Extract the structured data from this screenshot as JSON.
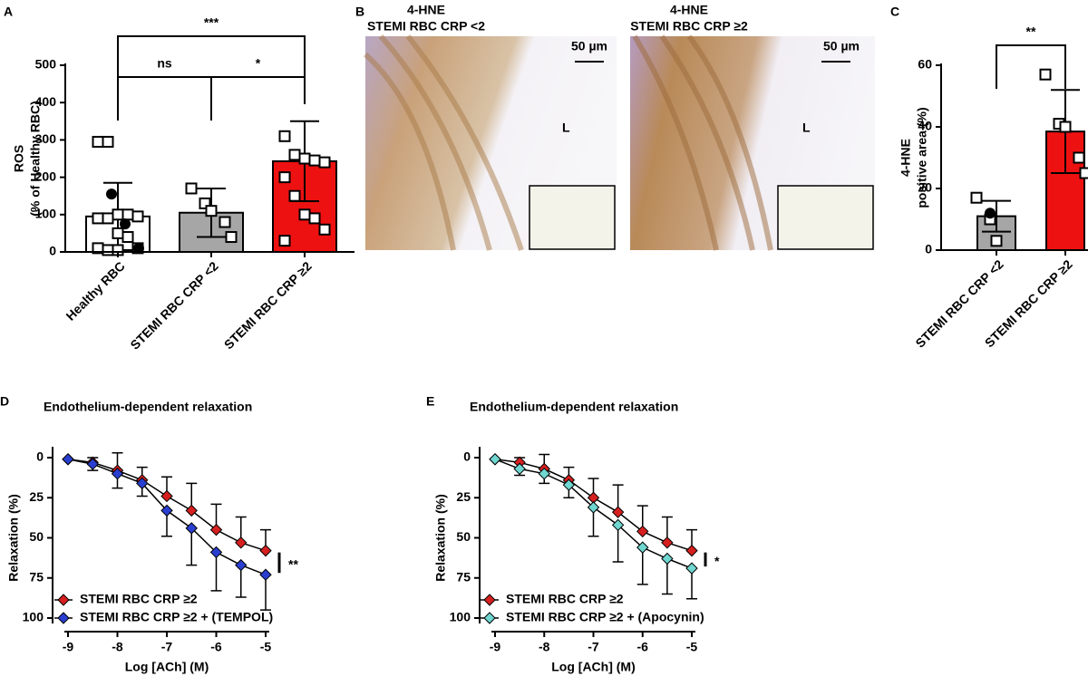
{
  "chart_data": [
    {
      "type": "bar",
      "panel_label": "A",
      "categories": [
        "Healthy RBC",
        "STEMI RBC CRP <2",
        "STEMI RBC CRP ≥2"
      ],
      "values": [
        95,
        105,
        243
      ],
      "errors": [
        90,
        65,
        107
      ],
      "colors": [
        "#ffffff",
        "#a6a6a6",
        "#ee1111"
      ],
      "points": [
        [
          295,
          295,
          100,
          100,
          95,
          90,
          90,
          50,
          40,
          10,
          10,
          5,
          5
        ],
        [
          170,
          130,
          110,
          80,
          40
        ],
        [
          310,
          260,
          250,
          245,
          240,
          200,
          150,
          100,
          90,
          60,
          30
        ]
      ],
      "filled_points": [
        [
          155,
          75,
          10
        ],
        [],
        []
      ],
      "ylabel": [
        "ROS",
        "(% of Healthy RBC)"
      ],
      "ylim": [
        0,
        500
      ],
      "yticks": [
        0,
        100,
        200,
        300,
        400,
        500
      ],
      "annotations": [
        "***",
        "ns",
        "*"
      ]
    },
    {
      "type": "bar",
      "panel_label": "C",
      "categories": [
        "STEMI RBC CRP <2",
        "STEMI RBC CRP ≥2"
      ],
      "values": [
        11,
        38.5
      ],
      "errors": [
        5,
        13.5
      ],
      "colors": [
        "#a6a6a6",
        "#ee1111"
      ],
      "points": [
        [
          17,
          10,
          3
        ],
        [
          57,
          41,
          40,
          30,
          25
        ]
      ],
      "filled_points": [
        [
          12
        ],
        []
      ],
      "ylabel": [
        "4-HNE",
        "positive area (%)"
      ],
      "ylim": [
        0,
        60
      ],
      "yticks": [
        0,
        20,
        40,
        60
      ],
      "annotations": [
        "**"
      ]
    },
    {
      "type": "line",
      "panel_label": "D",
      "title": "Endothelium-dependent relaxation",
      "xlabel": "Log [ACh] (M)",
      "ylabel": "Relaxation (%)",
      "x": [
        -9,
        -8.5,
        -8,
        -7.5,
        -7,
        -6.5,
        -6,
        -5.5,
        -5
      ],
      "xlim": [
        -9,
        -5
      ],
      "xticks": [
        -9,
        -8,
        -7,
        -6,
        -5
      ],
      "ylim": [
        0,
        100
      ],
      "yticks": [
        0,
        25,
        50,
        75,
        100
      ],
      "y_inverted": true,
      "series": [
        {
          "name": "STEMI RBC CRP ≥2",
          "color": "#d62020",
          "values": [
            1,
            3,
            8,
            14,
            24,
            33,
            45,
            53,
            58
          ],
          "errors": [
            0,
            3,
            11,
            8,
            12,
            17,
            16,
            16,
            13
          ]
        },
        {
          "name": "STEMI RBC CRP ≥2 + (TEMPOL)",
          "color": "#2a3fd0",
          "values": [
            1,
            4,
            10,
            16,
            33,
            44,
            59,
            67,
            73
          ],
          "errors": [
            0,
            4,
            9,
            8,
            16,
            23,
            24,
            20,
            22
          ]
        }
      ],
      "annotations": [
        "**"
      ]
    },
    {
      "type": "line",
      "panel_label": "E",
      "title": "Endothelium-dependent relaxation",
      "xlabel": "Log [ACh] (M)",
      "ylabel": "Relaxation (%)",
      "x": [
        -9,
        -8.5,
        -8,
        -7.5,
        -7,
        -6.5,
        -6,
        -5.5,
        -5
      ],
      "xlim": [
        -9,
        -5
      ],
      "xticks": [
        -9,
        -8,
        -7,
        -6,
        -5
      ],
      "ylim": [
        0,
        100
      ],
      "yticks": [
        0,
        25,
        50,
        75,
        100
      ],
      "y_inverted": true,
      "series": [
        {
          "name": "STEMI RBC CRP ≥2",
          "color": "#d62020",
          "values": [
            1,
            3,
            7,
            14,
            25,
            34,
            46,
            53,
            58
          ],
          "errors": [
            0,
            3,
            9,
            8,
            12,
            17,
            16,
            16,
            13
          ]
        },
        {
          "name": "STEMI RBC CRP ≥2 + (Apocynin)",
          "color": "#6fd6d0",
          "values": [
            1,
            7,
            10,
            17,
            31,
            42,
            56,
            63,
            69
          ],
          "errors": [
            0,
            4,
            6,
            8,
            18,
            23,
            23,
            22,
            19
          ]
        }
      ],
      "annotations": [
        "*"
      ]
    }
  ],
  "images": {
    "panel_label": "B",
    "items": [
      {
        "title": "4-HNE",
        "subtitle": "STEMI RBC CRP <2",
        "scale_bar": "50 µm",
        "lumen": "L"
      },
      {
        "title": "4-HNE",
        "subtitle": "STEMI RBC CRP ≥2",
        "scale_bar": "50 µm",
        "lumen": "L"
      }
    ]
  }
}
